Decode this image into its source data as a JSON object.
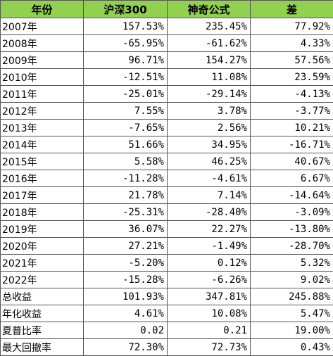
{
  "table": {
    "header": [
      "年份",
      "沪深300",
      "神奇公式",
      "差"
    ],
    "rows": [
      [
        "2007年",
        "157.53%",
        "235.45%",
        "77.92%"
      ],
      [
        "2008年",
        "-65.95%",
        "-61.62%",
        "4.33%"
      ],
      [
        "2009年",
        "96.71%",
        "154.27%",
        "57.56%"
      ],
      [
        "2010年",
        "-12.51%",
        "11.08%",
        "23.59%"
      ],
      [
        "2011年",
        "-25.01%",
        "-29.14%",
        "-4.13%"
      ],
      [
        "2012年",
        "7.55%",
        "3.78%",
        "-3.77%"
      ],
      [
        "2013年",
        "-7.65%",
        "2.56%",
        "10.21%"
      ],
      [
        "2014年",
        "51.66%",
        "34.95%",
        "-16.71%"
      ],
      [
        "2015年",
        "5.58%",
        "46.25%",
        "40.67%"
      ],
      [
        "2016年",
        "-11.28%",
        "-4.61%",
        "6.67%"
      ],
      [
        "2017年",
        "21.78%",
        "7.14%",
        "-14.64%"
      ],
      [
        "2018年",
        "-25.31%",
        "-28.40%",
        "-3.09%"
      ],
      [
        "2019年",
        "36.07%",
        "22.27%",
        "-13.80%"
      ],
      [
        "2020年",
        "27.21%",
        "-1.49%",
        "-28.70%"
      ],
      [
        "2021年",
        "-5.20%",
        "0.12%",
        "5.32%"
      ],
      [
        "2022年",
        "-15.28%",
        "-6.26%",
        "9.02%"
      ],
      [
        "总收益",
        "101.93%",
        "347.81%",
        "245.88%"
      ],
      [
        "年化收益",
        "4.61%",
        "10.08%",
        "5.47%"
      ],
      [
        "夏普比率",
        "0.02",
        "0.21",
        "19.00%"
      ],
      [
        "最大回撤率",
        "72.30%",
        "72.73%",
        "0.43%"
      ]
    ]
  }
}
